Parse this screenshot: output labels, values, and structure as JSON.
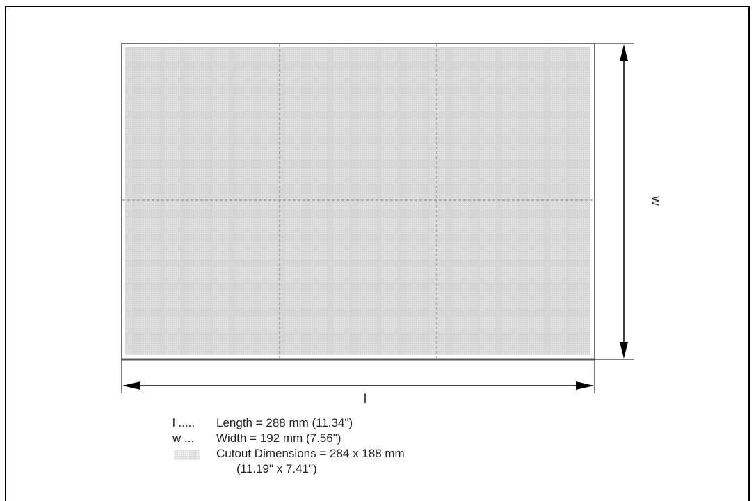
{
  "dimension_labels": {
    "length_symbol": "l",
    "width_symbol": "w"
  },
  "legend": {
    "length": {
      "key": "l .....",
      "text": "Length = 288 mm (11.34\")"
    },
    "width": {
      "key": "w ...",
      "text": "Width = 192 mm (7.56\")"
    },
    "cutout": {
      "text": "Cutout Dimensions =  284 x 188 mm",
      "text_continued": "(11.19\" x 7.41\")"
    }
  },
  "colors": {
    "cutout_fill": "#d9d9d9",
    "outline": "#6f6f6f",
    "dashed_lines": "#7a7a7a",
    "arrows": "#000000"
  }
}
